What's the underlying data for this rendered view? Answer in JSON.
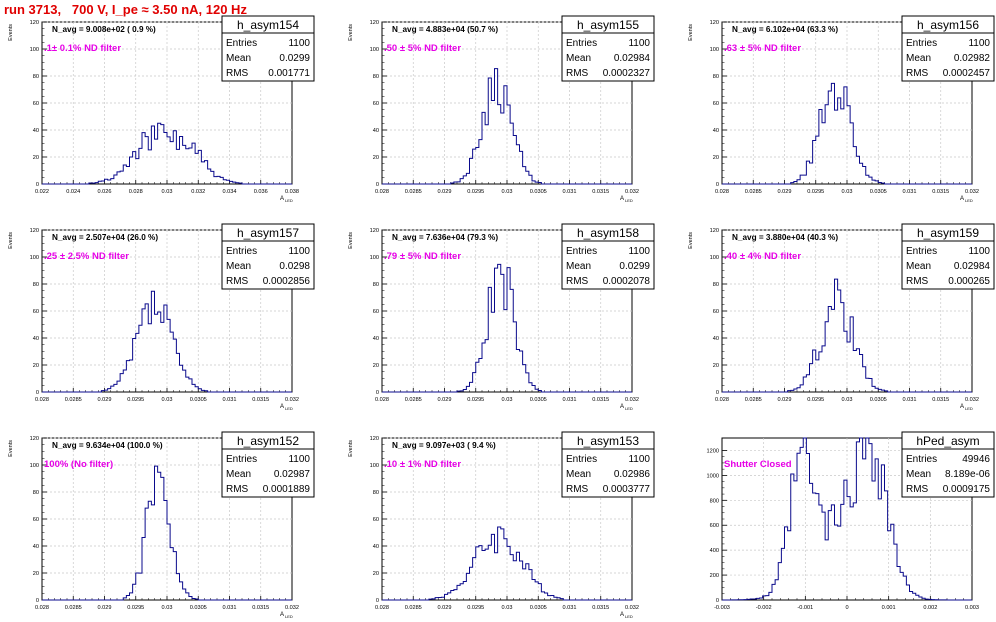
{
  "page": {
    "title": "run 3713,   700 V, I_pe ≈ 3.50 nA, 120 Hz"
  },
  "colors": {
    "histogram": "#0a0a8c",
    "annotation": "#e600e6",
    "title": "#e00000",
    "grid": "#c8c8c8"
  },
  "chart_data": [
    {
      "type": "histogram",
      "name": "h_asym154",
      "navg": "N_avg = 9.008e+02 ( 0.9 %)",
      "note": ".1± 0.1% ND filter",
      "stats": {
        "entries": "1100",
        "mean": "0.0299",
        "rms": "0.001771"
      },
      "labels": {
        "entries": "Entries",
        "mean": "Mean",
        "rms": "RMS"
      },
      "ylabel": "Events",
      "xlabel": "A",
      "xlabel_sub": "LED",
      "xlim": [
        0.022,
        0.038
      ],
      "ylim": [
        0,
        120
      ],
      "xticks": [
        0.022,
        0.024,
        0.026,
        0.028,
        0.03,
        0.032,
        0.034,
        0.036,
        0.038
      ],
      "xtick_labels": [
        "0.022",
        "0.024",
        "0.026",
        "0.028",
        "0.03",
        "0.032",
        "0.034",
        "0.036",
        "0.038"
      ],
      "yticks": [
        0,
        20,
        40,
        60,
        80,
        100,
        120
      ],
      "ytick_labels": [
        "0",
        "20",
        "40",
        "60",
        "80",
        "100",
        "120"
      ],
      "shape": {
        "components": [
          [
            0.0299,
            0.0017,
            35
          ],
          [
            0.0286,
            0.0008,
            5
          ],
          [
            0.0318,
            0.0006,
            6
          ]
        ],
        "seed": 154
      }
    },
    {
      "type": "histogram",
      "name": "h_asym155",
      "navg": "N_avg = 4.883e+04 (50.7 %)",
      "note": ".50 ± 5% ND filter",
      "stats": {
        "entries": "1100",
        "mean": "0.02984",
        "rms": "0.0002327"
      },
      "labels": {
        "entries": "Entries",
        "mean": "Mean",
        "rms": "RMS"
      },
      "ylabel": "Events",
      "xlabel": "A",
      "xlabel_sub": "LED",
      "xlim": [
        0.028,
        0.032
      ],
      "ylim": [
        0,
        120
      ],
      "xticks": [
        0.028,
        0.0285,
        0.029,
        0.0295,
        0.03,
        0.0305,
        0.031,
        0.0315,
        0.032
      ],
      "xtick_labels": [
        "0.028",
        "0.0285",
        "0.029",
        "0.0295",
        "0.03",
        "0.0305",
        "0.031",
        "0.0315",
        "0.032"
      ],
      "yticks": [
        0,
        20,
        40,
        60,
        80,
        100,
        120
      ],
      "ytick_labels": [
        "0",
        "20",
        "40",
        "60",
        "80",
        "100",
        "120"
      ],
      "shape": {
        "components": [
          [
            0.02984,
            0.00023,
            78
          ]
        ],
        "seed": 155
      }
    },
    {
      "type": "histogram",
      "name": "h_asym156",
      "navg": "N_avg = 6.102e+04 (63.3 %)",
      "note": ".63 ± 5% ND filter",
      "stats": {
        "entries": "1100",
        "mean": "0.02982",
        "rms": "0.0002457"
      },
      "labels": {
        "entries": "Entries",
        "mean": "Mean",
        "rms": "RMS"
      },
      "ylabel": "Events",
      "xlabel": "A",
      "xlabel_sub": "LED",
      "xlim": [
        0.028,
        0.032
      ],
      "ylim": [
        0,
        120
      ],
      "xticks": [
        0.028,
        0.0285,
        0.029,
        0.0295,
        0.03,
        0.0305,
        0.031,
        0.0315,
        0.032
      ],
      "xtick_labels": [
        "0.028",
        "0.0285",
        "0.029",
        "0.0295",
        "0.03",
        "0.0305",
        "0.031",
        "0.0315",
        "0.032"
      ],
      "yticks": [
        0,
        20,
        40,
        60,
        80,
        100,
        120
      ],
      "ytick_labels": [
        "0",
        "20",
        "40",
        "60",
        "80",
        "100",
        "120"
      ],
      "shape": {
        "components": [
          [
            0.02982,
            0.00024,
            76
          ]
        ],
        "seed": 156
      }
    },
    {
      "type": "histogram",
      "name": "h_asym157",
      "navg": "N_avg = 2.507e+04 (26.0 %)",
      "note": ".25 ± 2.5% ND filter",
      "stats": {
        "entries": "1100",
        "mean": "0.0298",
        "rms": "0.0002856"
      },
      "labels": {
        "entries": "Entries",
        "mean": "Mean",
        "rms": "RMS"
      },
      "ylabel": "Events",
      "xlabel": "A",
      "xlabel_sub": "LED",
      "xlim": [
        0.028,
        0.032
      ],
      "ylim": [
        0,
        120
      ],
      "xticks": [
        0.028,
        0.0285,
        0.029,
        0.0295,
        0.03,
        0.0305,
        0.031,
        0.0315,
        0.032
      ],
      "xtick_labels": [
        "0.028",
        "0.0285",
        "0.029",
        "0.0295",
        "0.03",
        "0.0305",
        "0.031",
        "0.0315",
        "0.032"
      ],
      "yticks": [
        0,
        20,
        40,
        60,
        80,
        100,
        120
      ],
      "ytick_labels": [
        "0",
        "20",
        "40",
        "60",
        "80",
        "100",
        "120"
      ],
      "shape": {
        "components": [
          [
            0.0298,
            0.00028,
            64
          ]
        ],
        "seed": 157
      }
    },
    {
      "type": "histogram",
      "name": "h_asym158",
      "navg": "N_avg = 7.636e+04 (79.3 %)",
      "note": ".79 ± 5% ND filter",
      "stats": {
        "entries": "1100",
        "mean": "0.0299",
        "rms": "0.0002078"
      },
      "labels": {
        "entries": "Entries",
        "mean": "Mean",
        "rms": "RMS"
      },
      "ylabel": "Events",
      "xlabel": "A",
      "xlabel_sub": "LED",
      "xlim": [
        0.028,
        0.032
      ],
      "ylim": [
        0,
        120
      ],
      "xticks": [
        0.028,
        0.0285,
        0.029,
        0.0295,
        0.03,
        0.0305,
        0.031,
        0.0315,
        0.032
      ],
      "xtick_labels": [
        "0.028",
        "0.0285",
        "0.029",
        "0.0295",
        "0.03",
        "0.0305",
        "0.031",
        "0.0315",
        "0.032"
      ],
      "yticks": [
        0,
        20,
        40,
        60,
        80,
        100,
        120
      ],
      "ytick_labels": [
        "0",
        "20",
        "40",
        "60",
        "80",
        "100",
        "120"
      ],
      "shape": {
        "components": [
          [
            0.0299,
            0.00021,
            90
          ]
        ],
        "seed": 158
      }
    },
    {
      "type": "histogram",
      "name": "h_asym159",
      "navg": "N_avg = 3.880e+04 (40.3 %)",
      "note": ".40 ± 4% ND filter",
      "stats": {
        "entries": "1100",
        "mean": "0.02984",
        "rms": "0.000265"
      },
      "labels": {
        "entries": "Entries",
        "mean": "Mean",
        "rms": "RMS"
      },
      "ylabel": "Events",
      "xlabel": "A",
      "xlabel_sub": "LED",
      "xlim": [
        0.028,
        0.032
      ],
      "ylim": [
        0,
        120
      ],
      "xticks": [
        0.028,
        0.0285,
        0.029,
        0.0295,
        0.03,
        0.0305,
        0.031,
        0.0315,
        0.032
      ],
      "xtick_labels": [
        "0.028",
        "0.0285",
        "0.029",
        "0.0295",
        "0.03",
        "0.0305",
        "0.031",
        "0.0315",
        "0.032"
      ],
      "yticks": [
        0,
        20,
        40,
        60,
        80,
        100,
        120
      ],
      "ytick_labels": [
        "0",
        "20",
        "40",
        "60",
        "80",
        "100",
        "120"
      ],
      "shape": {
        "components": [
          [
            0.02984,
            0.00026,
            66
          ]
        ],
        "seed": 159
      }
    },
    {
      "type": "histogram",
      "name": "h_asym152",
      "navg": "N_avg = 9.634e+04 (100.0 %)",
      "note": "100% (No filter)",
      "stats": {
        "entries": "1100",
        "mean": "0.02987",
        "rms": "0.0001889"
      },
      "labels": {
        "entries": "Entries",
        "mean": "Mean",
        "rms": "RMS"
      },
      "ylabel": "Events",
      "xlabel": "A",
      "xlabel_sub": "LED",
      "xlim": [
        0.028,
        0.032
      ],
      "ylim": [
        0,
        120
      ],
      "xticks": [
        0.028,
        0.0285,
        0.029,
        0.0295,
        0.03,
        0.0305,
        0.031,
        0.0315,
        0.032
      ],
      "xtick_labels": [
        "0.028",
        "0.0285",
        "0.029",
        "0.0295",
        "0.03",
        "0.0305",
        "0.031",
        "0.0315",
        "0.032"
      ],
      "yticks": [
        0,
        20,
        40,
        60,
        80,
        100,
        120
      ],
      "ytick_labels": [
        "0",
        "20",
        "40",
        "60",
        "80",
        "100",
        "120"
      ],
      "shape": {
        "components": [
          [
            0.02987,
            0.00019,
            92
          ]
        ],
        "seed": 152
      }
    },
    {
      "type": "histogram",
      "name": "h_asym153",
      "navg": "N_avg = 9.097e+03 ( 9.4 %)",
      "note": ".10 ± 1% ND filter",
      "stats": {
        "entries": "1100",
        "mean": "0.02986",
        "rms": "0.0003777"
      },
      "labels": {
        "entries": "Entries",
        "mean": "Mean",
        "rms": "RMS"
      },
      "ylabel": "Events",
      "xlabel": "A",
      "xlabel_sub": "LED",
      "xlim": [
        0.028,
        0.032
      ],
      "ylim": [
        0,
        120
      ],
      "xticks": [
        0.028,
        0.0285,
        0.029,
        0.0295,
        0.03,
        0.0305,
        0.031,
        0.0315,
        0.032
      ],
      "xtick_labels": [
        "0.028",
        "0.0285",
        "0.029",
        "0.0295",
        "0.03",
        "0.0305",
        "0.031",
        "0.0315",
        "0.032"
      ],
      "yticks": [
        0,
        20,
        40,
        60,
        80,
        100,
        120
      ],
      "ytick_labels": [
        "0",
        "20",
        "40",
        "60",
        "80",
        "100",
        "120"
      ],
      "shape": {
        "components": [
          [
            0.02986,
            0.00037,
            48
          ]
        ],
        "seed": 153
      }
    },
    {
      "type": "histogram",
      "name": "hPed_asym",
      "navg": "",
      "note": "Shutter Closed",
      "stats": {
        "entries": "49946",
        "mean": "8.189e-06",
        "rms": "0.0009175"
      },
      "labels": {
        "entries": "Entries",
        "mean": "Mean",
        "rms": "RMS"
      },
      "ylabel": "",
      "xlabel": "",
      "xlabel_sub": "",
      "xlim": [
        -0.003,
        0.003
      ],
      "ylim": [
        0,
        1300
      ],
      "xticks": [
        -0.003,
        -0.002,
        -0.001,
        0,
        0.001,
        0.002,
        0.003
      ],
      "xtick_labels": [
        "-0.003",
        "-0.002",
        "-0.001",
        "0",
        "0.001",
        "0.002",
        "0.003"
      ],
      "yticks": [
        0,
        200,
        400,
        600,
        800,
        1000,
        1200
      ],
      "ytick_labels": [
        "0",
        "200",
        "400",
        "600",
        "800",
        "1000",
        "1200"
      ],
      "shape": {
        "components": [
          [
            -0.0011,
            0.00028,
            880
          ],
          [
            0.0006,
            0.00038,
            1000
          ],
          [
            -0.0002,
            0.0007,
            560
          ]
        ],
        "seed": 99
      }
    }
  ]
}
